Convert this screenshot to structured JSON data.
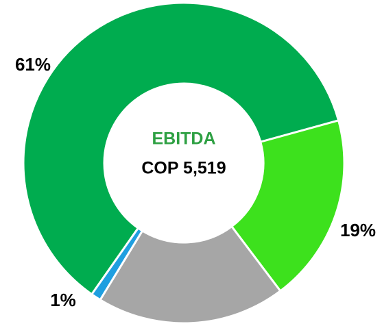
{
  "chart_data": {
    "type": "donut",
    "center_title": "EBITDA",
    "center_value": "COP 5,519",
    "values": [
      61,
      19,
      19,
      1
    ],
    "value_labels": [
      "61%",
      "19%",
      null,
      "1%"
    ],
    "colors": [
      "#00ac4f",
      "#3de11d",
      "#a6a6a6",
      "#1f9fe0"
    ]
  }
}
